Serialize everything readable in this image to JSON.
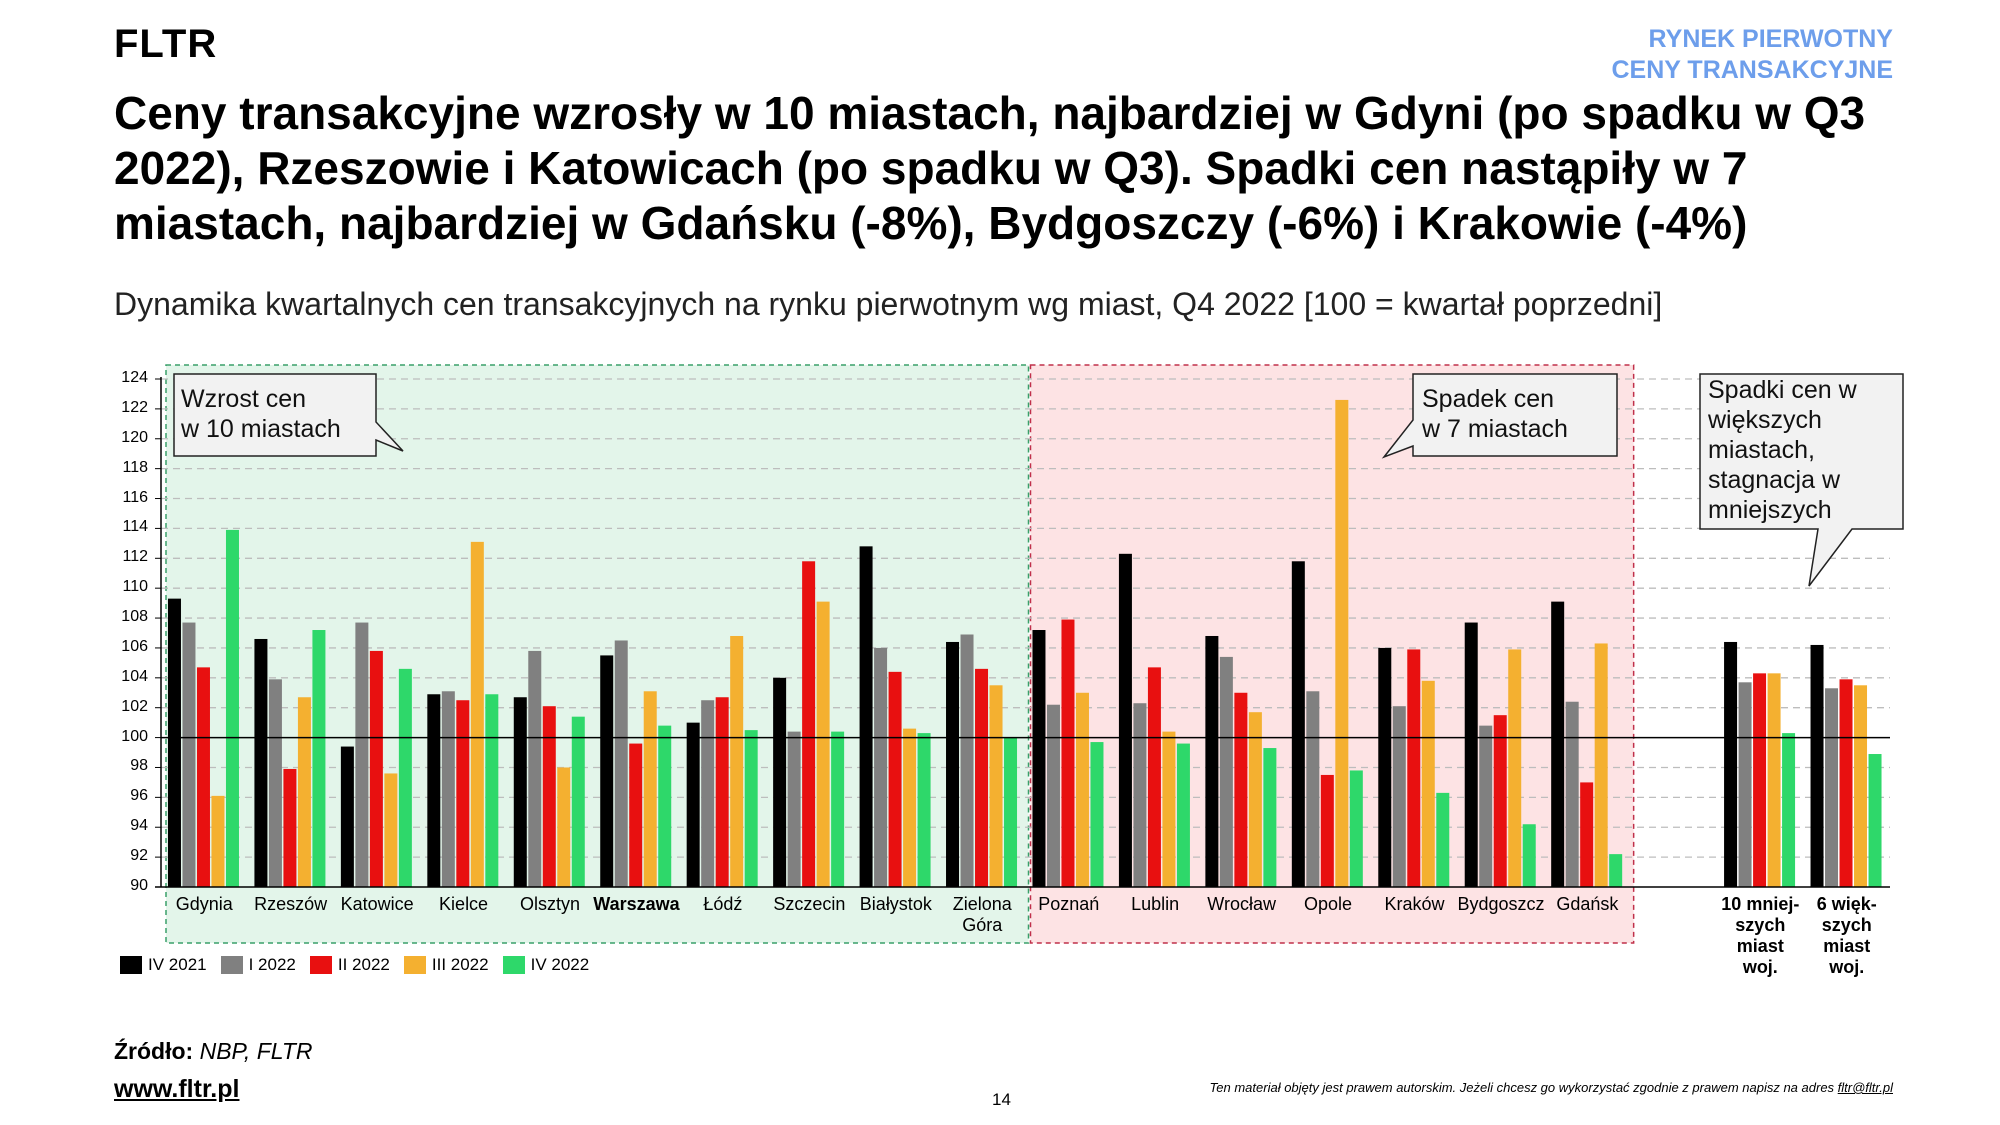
{
  "header": {
    "logo": "FLTR",
    "section_line1": "RYNEK PIERWOTNY",
    "section_line2": "CENY TRANSAKCYJNE",
    "title": "Ceny transakcyjne wzrosły w 10 miastach, najbardziej w Gdyni (po spadku w Q3 2022), Rzeszowie i Katowicach (po spadku w Q3). Spadki cen nastąpiły w 7 miastach, najbardziej w Gdańsku (-8%), Bydgoszczy (-6%) i Krakowie (-4%)",
    "subtitle": "Dynamika kwartalnych cen transakcyjnych na rynku pierwotnym wg miast, Q4 2022 [100 = kwartał poprzedni]"
  },
  "callouts": {
    "growth": [
      "Wzrost cen",
      "w 10 miastach"
    ],
    "decline": [
      "Spadek cen",
      "w 7 miastach"
    ],
    "aggregate": [
      "Spadki cen w",
      "większych",
      "miastach,",
      "stagnacja w",
      "mniejszych"
    ]
  },
  "chart_data": {
    "type": "bar",
    "title": "Dynamika kwartalnych cen transakcyjnych na rynku pierwotnym wg miast, Q4 2022 [100 = kwartał poprzedni]",
    "ylim": [
      90,
      124
    ],
    "yticks": [
      "90",
      "92",
      "94",
      "96",
      "98",
      "100",
      "102",
      "104",
      "106",
      "108",
      "110",
      "112",
      "114",
      "116",
      "118",
      "120",
      "122",
      "124"
    ],
    "baseline": 100,
    "grid": true,
    "legend_position": "bottom-left",
    "categories": [
      {
        "lines": [
          "Gdynia"
        ],
        "bold": false
      },
      {
        "lines": [
          "Rzeszów"
        ],
        "bold": false
      },
      {
        "lines": [
          "Katowice"
        ],
        "bold": false
      },
      {
        "lines": [
          "Kielce"
        ],
        "bold": false
      },
      {
        "lines": [
          "Olsztyn"
        ],
        "bold": false
      },
      {
        "lines": [
          "Warszawa"
        ],
        "bold": true
      },
      {
        "lines": [
          "Łódź"
        ],
        "bold": false
      },
      {
        "lines": [
          "Szczecin"
        ],
        "bold": false
      },
      {
        "lines": [
          "Białystok"
        ],
        "bold": false
      },
      {
        "lines": [
          "Zielona",
          "Góra"
        ],
        "bold": false
      },
      {
        "lines": [
          "Poznań"
        ],
        "bold": false
      },
      {
        "lines": [
          "Lublin"
        ],
        "bold": false
      },
      {
        "lines": [
          "Wrocław"
        ],
        "bold": false
      },
      {
        "lines": [
          "Opole"
        ],
        "bold": false
      },
      {
        "lines": [
          "Kraków"
        ],
        "bold": false
      },
      {
        "lines": [
          "Bydgoszcz"
        ],
        "bold": false
      },
      {
        "lines": [
          "Gdańsk"
        ],
        "bold": false
      },
      {
        "lines": [],
        "bold": false
      },
      {
        "lines": [
          "10 mniej-",
          "szych",
          "miast",
          "woj."
        ],
        "bold": true
      },
      {
        "lines": [
          "6 więk-",
          "szych",
          "miast",
          "woj."
        ],
        "bold": true
      }
    ],
    "series": [
      {
        "name": "IV 2021",
        "color": "#000000",
        "values": [
          109.3,
          106.6,
          99.4,
          102.9,
          102.7,
          105.5,
          101.0,
          104.0,
          112.8,
          106.4,
          107.2,
          112.3,
          106.8,
          111.8,
          106.0,
          107.7,
          109.1,
          null,
          106.4,
          106.2
        ]
      },
      {
        "name": "I 2022",
        "color": "#808080",
        "values": [
          107.7,
          103.9,
          107.7,
          103.1,
          105.8,
          106.5,
          102.5,
          100.4,
          106.0,
          106.9,
          102.2,
          102.3,
          105.4,
          103.1,
          102.1,
          100.8,
          102.4,
          null,
          103.7,
          103.3
        ]
      },
      {
        "name": "II 2022",
        "color": "#e81010",
        "values": [
          104.7,
          97.9,
          105.8,
          102.5,
          102.1,
          99.6,
          102.7,
          111.8,
          104.4,
          104.6,
          107.9,
          104.7,
          103.0,
          97.5,
          105.9,
          101.5,
          97.0,
          null,
          104.3,
          103.9
        ]
      },
      {
        "name": "III 2022",
        "color": "#f4b030",
        "values": [
          96.1,
          102.7,
          97.6,
          113.1,
          98.0,
          103.1,
          106.8,
          109.1,
          100.6,
          103.5,
          103.0,
          100.4,
          101.7,
          122.6,
          103.8,
          105.9,
          106.3,
          null,
          104.3,
          103.5
        ]
      },
      {
        "name": "IV 2022",
        "color": "#2ed86a",
        "values": [
          113.9,
          107.2,
          104.6,
          102.9,
          101.4,
          100.8,
          100.5,
          100.4,
          100.3,
          100.0,
          99.7,
          99.6,
          99.3,
          97.8,
          96.3,
          94.2,
          92.2,
          null,
          100.3,
          98.9
        ]
      }
    ],
    "regions": [
      {
        "label": "growth",
        "from_category": 0,
        "to_category": 9,
        "color": "#e3f5ea"
      },
      {
        "label": "decline",
        "from_category": 10,
        "to_category": 16,
        "color": "#fde3e4"
      }
    ]
  },
  "footer": {
    "source_label": "Źródło:",
    "source_value": "NBP, FLTR",
    "website": "www.fltr.pl",
    "page_number": "14",
    "copyright": "Ten materiał objęty jest prawem autorskim. Jeżeli chcesz go wykorzystać zgodnie z prawem napisz na adres ",
    "email": "fltr@fltr.pl"
  }
}
